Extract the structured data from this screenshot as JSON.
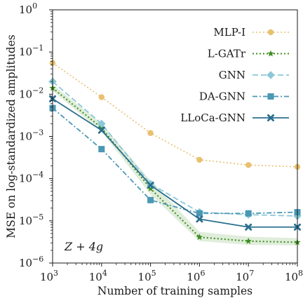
{
  "chart_data": {
    "type": "line",
    "xscale": "log",
    "yscale": "log",
    "xlim": [
      1000,
      100000000
    ],
    "ylim": [
      1e-06,
      1
    ],
    "xlabel": "Number of training samples",
    "ylabel": "MSE on log-standardized amplitudes",
    "annotation": "Z + 4g",
    "x_ticks": [
      {
        "value": 1000,
        "mantissa": "10",
        "exp": "3"
      },
      {
        "value": 10000,
        "mantissa": "10",
        "exp": "4"
      },
      {
        "value": 100000,
        "mantissa": "10",
        "exp": "5"
      },
      {
        "value": 1000000,
        "mantissa": "10",
        "exp": "6"
      },
      {
        "value": 10000000,
        "mantissa": "10",
        "exp": "7"
      },
      {
        "value": 100000000,
        "mantissa": "10",
        "exp": "8"
      }
    ],
    "y_ticks": [
      {
        "value": 1e-06,
        "mantissa": "10",
        "exp": "−6"
      },
      {
        "value": 1e-05,
        "mantissa": "10",
        "exp": "−5"
      },
      {
        "value": 0.0001,
        "mantissa": "10",
        "exp": "−4"
      },
      {
        "value": 0.001,
        "mantissa": "10",
        "exp": "−3"
      },
      {
        "value": 0.01,
        "mantissa": "10",
        "exp": "−2"
      },
      {
        "value": 0.1,
        "mantissa": "10",
        "exp": "−1"
      },
      {
        "value": 1,
        "mantissa": "10",
        "exp": "0"
      }
    ],
    "x": [
      1000,
      10000,
      100000,
      1000000,
      10000000,
      100000000
    ],
    "legend_position": "top-right",
    "series": [
      {
        "name": "MLP-I",
        "color": "#e8c170",
        "dash": "2,3",
        "width": 1.6,
        "marker": "circle",
        "values": [
          0.055,
          0.0085,
          0.0012,
          0.00028,
          0.00021,
          0.00019
        ]
      },
      {
        "name": "L-GATr",
        "color": "#3c8c1e",
        "dash": "2,3",
        "width": 2,
        "marker": "star",
        "values": [
          0.014,
          0.0016,
          5.8e-05,
          4.1e-06,
          3.3e-06,
          3.1e-06
        ],
        "band_lower": [
          0.012,
          0.0013,
          4.2e-05,
          3.3e-06,
          2.7e-06,
          2.6e-06
        ],
        "band_upper": [
          0.017,
          0.002,
          9e-05,
          5.5e-06,
          4.2e-06,
          3.9e-06
        ]
      },
      {
        "name": "GNN",
        "color": "#8cc8d8",
        "dash": "8,4",
        "width": 1.8,
        "marker": "diamond",
        "values": [
          0.02,
          0.002,
          7.5e-05,
          1.6e-05,
          1.4e-05,
          1.3e-05
        ]
      },
      {
        "name": "DA-GNN",
        "color": "#4a98b4",
        "dash": "7,3,2,3",
        "width": 1.8,
        "marker": "square",
        "values": [
          0.0047,
          0.0005,
          3.1e-05,
          1.5e-05,
          1.5e-05,
          1.6e-05
        ]
      },
      {
        "name": "LLoCa-GNN",
        "color": "#2a6f90",
        "dash": "",
        "width": 1.8,
        "marker": "x",
        "values": [
          0.0078,
          0.0014,
          7e-05,
          1.1e-05,
          7.1e-06,
          7.1e-06
        ]
      }
    ]
  }
}
